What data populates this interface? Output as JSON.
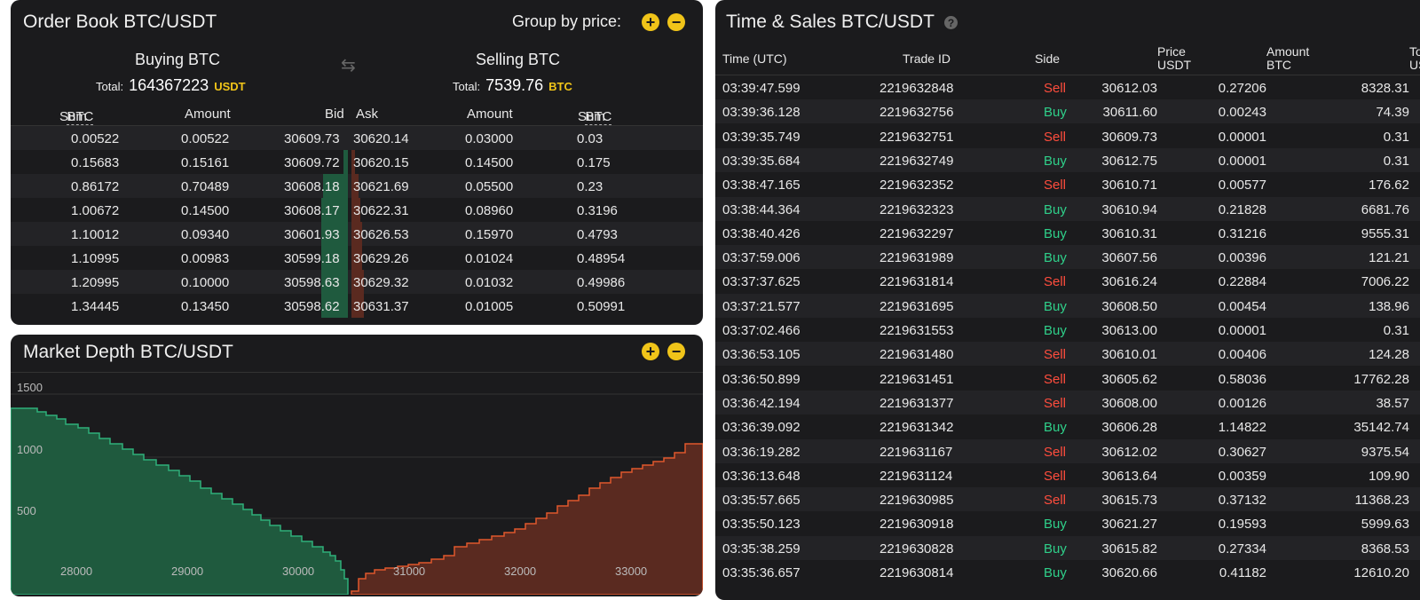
{
  "order_book": {
    "title": "Order Book BTC/USDT",
    "group_label": "Group by price:",
    "buying": {
      "title": "Buying BTC",
      "total_label": "Total:",
      "total_value": "164367223",
      "total_currency": "USDT"
    },
    "selling": {
      "title": "Selling BTC",
      "total_label": "Total:",
      "total_value": "7539.76",
      "total_currency": "BTC"
    },
    "headers": {
      "sum": "Sum",
      "sum_unit": "BTC",
      "amount": "Amount",
      "bid": "Bid",
      "ask": "Ask",
      "amount2": "Amount",
      "sum2": "Sum",
      "sum2_unit": "BTC"
    },
    "rows": [
      {
        "bid_sum": "0.00522",
        "bid_amount": "0.00522",
        "bid": "30609.73",
        "ask": "30620.14",
        "ask_amount": "0.03000",
        "ask_sum": "0.03"
      },
      {
        "bid_sum": "0.15683",
        "bid_amount": "0.15161",
        "bid": "30609.72",
        "ask": "30620.15",
        "ask_amount": "0.14500",
        "ask_sum": "0.175"
      },
      {
        "bid_sum": "0.86172",
        "bid_amount": "0.70489",
        "bid": "30608.18",
        "ask": "30621.69",
        "ask_amount": "0.05500",
        "ask_sum": "0.23"
      },
      {
        "bid_sum": "1.00672",
        "bid_amount": "0.14500",
        "bid": "30608.17",
        "ask": "30622.31",
        "ask_amount": "0.08960",
        "ask_sum": "0.3196"
      },
      {
        "bid_sum": "1.10012",
        "bid_amount": "0.09340",
        "bid": "30601.93",
        "ask": "30626.53",
        "ask_amount": "0.15970",
        "ask_sum": "0.4793"
      },
      {
        "bid_sum": "1.10995",
        "bid_amount": "0.00983",
        "bid": "30599.18",
        "ask": "30629.26",
        "ask_amount": "0.01024",
        "ask_sum": "0.48954"
      },
      {
        "bid_sum": "1.20995",
        "bid_amount": "0.10000",
        "bid": "30598.63",
        "ask": "30629.32",
        "ask_amount": "0.01032",
        "ask_sum": "0.49986"
      },
      {
        "bid_sum": "1.34445",
        "bid_amount": "0.13450",
        "bid": "30598.62",
        "ask": "30631.37",
        "ask_amount": "0.01005",
        "ask_sum": "0.50991"
      }
    ]
  },
  "depth": {
    "title": "Market Depth BTC/USDT",
    "y_ticks": [
      "1500",
      "1000",
      "500"
    ],
    "x_ticks": [
      "28000",
      "29000",
      "30000",
      "31000",
      "32000",
      "33000"
    ],
    "colors": {
      "bid": "#1f5a3e",
      "bid_line": "#2fb07a",
      "ask": "#5a2a20",
      "ask_line": "#e0582c"
    }
  },
  "time_sales": {
    "title": "Time & Sales BTC/USDT",
    "headers": {
      "time": "Time (UTC)",
      "trade_id": "Trade ID",
      "side": "Side",
      "price": "Price",
      "price_unit": "USDT",
      "amount": "Amount",
      "amount_unit": "BTC",
      "total": "Total",
      "total_unit": "USDT"
    },
    "colors": {
      "buy": "#2fd08a",
      "sell": "#ff4d3d"
    },
    "rows": [
      {
        "time": "03:39:47.599",
        "id": "2219632848",
        "side": "Sell",
        "price": "30612.03",
        "amount": "0.27206",
        "total": "8328.31"
      },
      {
        "time": "03:39:36.128",
        "id": "2219632756",
        "side": "Buy",
        "price": "30611.60",
        "amount": "0.00243",
        "total": "74.39"
      },
      {
        "time": "03:39:35.749",
        "id": "2219632751",
        "side": "Sell",
        "price": "30609.73",
        "amount": "0.00001",
        "total": "0.31"
      },
      {
        "time": "03:39:35.684",
        "id": "2219632749",
        "side": "Buy",
        "price": "30612.75",
        "amount": "0.00001",
        "total": "0.31"
      },
      {
        "time": "03:38:47.165",
        "id": "2219632352",
        "side": "Sell",
        "price": "30610.71",
        "amount": "0.00577",
        "total": "176.62"
      },
      {
        "time": "03:38:44.364",
        "id": "2219632323",
        "side": "Buy",
        "price": "30610.94",
        "amount": "0.21828",
        "total": "6681.76"
      },
      {
        "time": "03:38:40.426",
        "id": "2219632297",
        "side": "Buy",
        "price": "30610.31",
        "amount": "0.31216",
        "total": "9555.31"
      },
      {
        "time": "03:37:59.006",
        "id": "2219631989",
        "side": "Buy",
        "price": "30607.56",
        "amount": "0.00396",
        "total": "121.21"
      },
      {
        "time": "03:37:37.625",
        "id": "2219631814",
        "side": "Sell",
        "price": "30616.24",
        "amount": "0.22884",
        "total": "7006.22"
      },
      {
        "time": "03:37:21.577",
        "id": "2219631695",
        "side": "Buy",
        "price": "30608.50",
        "amount": "0.00454",
        "total": "138.96"
      },
      {
        "time": "03:37:02.466",
        "id": "2219631553",
        "side": "Buy",
        "price": "30613.00",
        "amount": "0.00001",
        "total": "0.31"
      },
      {
        "time": "03:36:53.105",
        "id": "2219631480",
        "side": "Sell",
        "price": "30610.01",
        "amount": "0.00406",
        "total": "124.28"
      },
      {
        "time": "03:36:50.899",
        "id": "2219631451",
        "side": "Sell",
        "price": "30605.62",
        "amount": "0.58036",
        "total": "17762.28"
      },
      {
        "time": "03:36:42.194",
        "id": "2219631377",
        "side": "Sell",
        "price": "30608.00",
        "amount": "0.00126",
        "total": "38.57"
      },
      {
        "time": "03:36:39.092",
        "id": "2219631342",
        "side": "Buy",
        "price": "30606.28",
        "amount": "1.14822",
        "total": "35142.74"
      },
      {
        "time": "03:36:19.282",
        "id": "2219631167",
        "side": "Sell",
        "price": "30612.02",
        "amount": "0.30627",
        "total": "9375.54"
      },
      {
        "time": "03:36:13.648",
        "id": "2219631124",
        "side": "Sell",
        "price": "30613.64",
        "amount": "0.00359",
        "total": "109.90"
      },
      {
        "time": "03:35:57.665",
        "id": "2219630985",
        "side": "Sell",
        "price": "30615.73",
        "amount": "0.37132",
        "total": "11368.23"
      },
      {
        "time": "03:35:50.123",
        "id": "2219630918",
        "side": "Buy",
        "price": "30621.27",
        "amount": "0.19593",
        "total": "5999.63"
      },
      {
        "time": "03:35:38.259",
        "id": "2219630828",
        "side": "Buy",
        "price": "30615.82",
        "amount": "0.27334",
        "total": "8368.53"
      },
      {
        "time": "03:35:36.657",
        "id": "2219630814",
        "side": "Buy",
        "price": "30620.66",
        "amount": "0.41182",
        "total": "12610.20"
      }
    ]
  }
}
